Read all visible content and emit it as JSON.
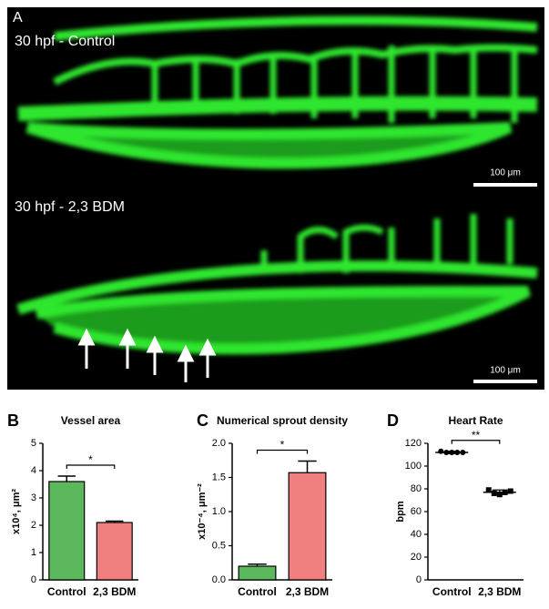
{
  "micrograph": {
    "panel_label": "A",
    "panels": [
      {
        "caption": "30 hpf - Control",
        "scale_bar": "100 μm"
      },
      {
        "caption": "30 hpf - 2,3 BDM",
        "scale_bar": "100 μm"
      }
    ]
  },
  "chart_data": [
    {
      "type": "bar",
      "panel_label": "B",
      "title": "Vessel area",
      "y_label": "x10⁴, μm²",
      "categories": [
        "Control",
        "2,3 BDM"
      ],
      "values": [
        3.6,
        2.1
      ],
      "errors": [
        0.2,
        0.05
      ],
      "colors": [
        "#5cb85c",
        "#f08080"
      ],
      "ylim": [
        0,
        5
      ],
      "yticks": [
        0,
        1,
        2,
        3,
        4,
        5
      ],
      "significance": "*"
    },
    {
      "type": "bar",
      "panel_label": "C",
      "title": "Numerical sprout density",
      "y_label": "x10⁻⁴, μm⁻²",
      "categories": [
        "Control",
        "2,3 BDM"
      ],
      "values": [
        0.2,
        1.57
      ],
      "errors": [
        0.03,
        0.17
      ],
      "colors": [
        "#5cb85c",
        "#f08080"
      ],
      "ylim": [
        0,
        2
      ],
      "yticks": [
        {
          "value": 0,
          "label": "0.0"
        },
        0.5,
        {
          "value": 1,
          "label": "1.0"
        },
        1.5,
        {
          "value": 2,
          "label": "2.0"
        }
      ],
      "significance": "*"
    },
    {
      "type": "dot",
      "panel_label": "D",
      "title": "Heart Rate",
      "y_label": "bpm",
      "categories": [
        "Control",
        "2,3 BDM"
      ],
      "points": [
        [
          113,
          112,
          112,
          112,
          112
        ],
        [
          79,
          76,
          75,
          77,
          78
        ]
      ],
      "means": [
        112,
        77
      ],
      "errors": [
        1,
        2
      ],
      "markers": [
        "circle",
        "square"
      ],
      "color": "#000000",
      "ylim": [
        0,
        120
      ],
      "yticks": [
        0,
        20,
        40,
        60,
        80,
        100,
        120
      ],
      "significance": "**"
    }
  ]
}
